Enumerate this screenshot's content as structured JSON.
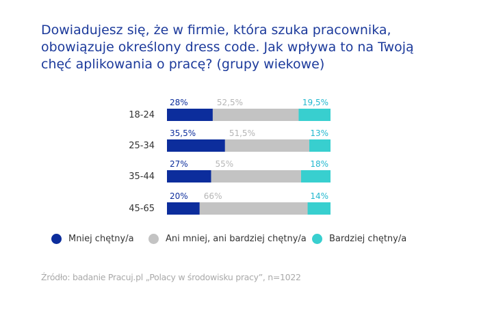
{
  "title_lines": [
    "Dowiadujesz się, że w firmie, która szuka pracownika,",
    "obowiązuje określony dress code. Jak wpływa to na Twoją",
    "chęć aplikowania o pracę? (grupy wiekowe)"
  ],
  "chart_data": {
    "type": "bar",
    "orientation": "horizontal",
    "stacked": true,
    "title": "Dowiadujesz się, że w firmie, która szuka pracownika, obowiązuje określony dress code. Jak wpływa to na Twoją chęć aplikowania o pracę? (grupy wiekowe)",
    "categories": [
      "18-24",
      "25-34",
      "35-44",
      "45-65"
    ],
    "series": [
      {
        "name": "Mniej chętny/a",
        "values": [
          28,
          35.5,
          27,
          20
        ],
        "labels": [
          "28%",
          "35,5%",
          "27%",
          "20%"
        ],
        "color": "#0c2d9c",
        "label_color": "#0c2d9c"
      },
      {
        "name": "Ani mniej, ani bardziej chętny/a",
        "values": [
          52.5,
          51.5,
          55,
          66
        ],
        "labels": [
          "52,5%",
          "51,5%",
          "55%",
          "66%"
        ],
        "color": "#c3c3c3",
        "label_color": "#b5b5b5"
      },
      {
        "name": "Bardziej chętny/a",
        "values": [
          19.5,
          13,
          18,
          14
        ],
        "labels": [
          "19,5%",
          "13%",
          "18%",
          "14%"
        ],
        "color": "#38cfcf",
        "label_color": "#22b8cf"
      }
    ],
    "xlim": [
      0,
      100
    ],
    "grid": false,
    "legend_position": "bottom"
  },
  "source": "Źródło: badanie Pracuj.pl „Polacy w środowisku pracy”, n=1022"
}
